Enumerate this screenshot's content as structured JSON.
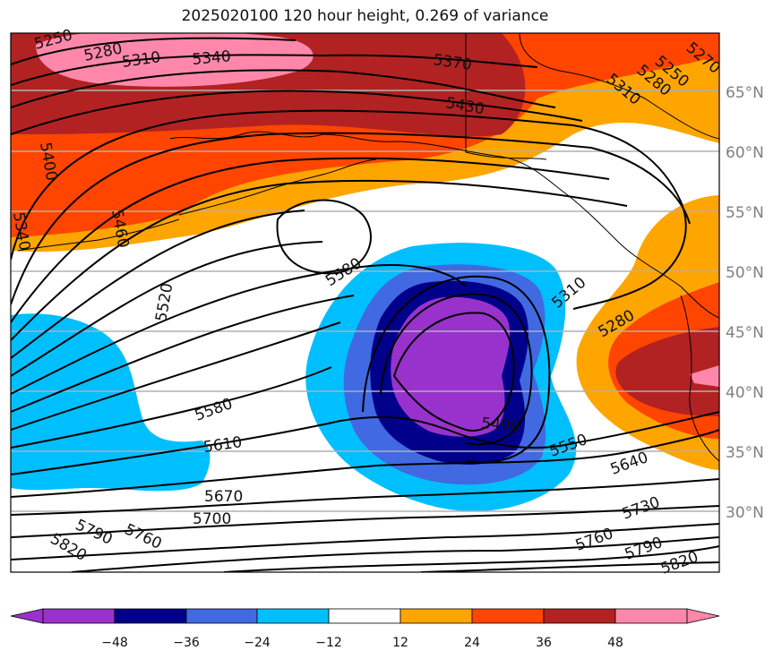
{
  "title": "2025020100 120 hour height, 0.269 of variance",
  "latitude_labels": [
    "65°N",
    "60°N",
    "55°N",
    "50°N",
    "45°N",
    "40°N",
    "35°N",
    "30°N"
  ],
  "contour_labels": [
    "5250",
    "5280",
    "5310",
    "5340",
    "5370",
    "5430",
    "5400",
    "5460",
    "5340",
    "5520",
    "5580",
    "5580",
    "5610",
    "5670",
    "5700",
    "5760",
    "5790",
    "5820",
    "5490",
    "5550",
    "5640",
    "5730",
    "5760",
    "5790",
    "5820",
    "5310",
    "5280",
    "5250",
    "5280",
    "5310",
    "5270"
  ],
  "colorbar": {
    "ticks": [
      "−48",
      "−36",
      "−24",
      "−12",
      "12",
      "24",
      "36",
      "48"
    ],
    "colors": [
      "#9932CC",
      "#00008B",
      "#4169E1",
      "#00BFFF",
      "#FFFFFF",
      "#FFA500",
      "#FF4500",
      "#B22222",
      "#FF88AA"
    ]
  },
  "palette": {
    "purple": "#9932CC",
    "navy": "#00008B",
    "blue": "#4169E1",
    "sky": "#00BFFF",
    "orange": "#FFA500",
    "red_orange": "#FF4500",
    "firebrick": "#B22222",
    "pink": "#FF88AA"
  }
}
